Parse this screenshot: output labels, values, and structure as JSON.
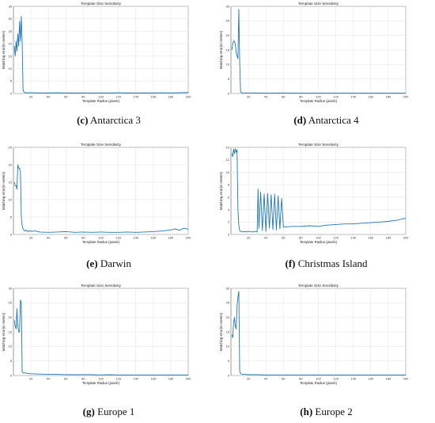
{
  "panels": [
    {
      "id": "c",
      "caption_letter": "(c)",
      "caption_text": "Antarctica 3",
      "chart_data": {
        "type": "line",
        "title": "Template Size Sensitivity",
        "xlabel": "Template Radius (pixels)",
        "ylabel": "Matching error(in meters)",
        "xlim": [
          0,
          200
        ],
        "ylim": [
          0,
          35
        ],
        "xticks": [
          20,
          40,
          60,
          80,
          100,
          120,
          140,
          160,
          180,
          200
        ],
        "yticks": [
          0,
          5,
          10,
          15,
          20,
          25,
          30,
          35
        ],
        "grid": true,
        "series": [
          {
            "color": "#1f77b4",
            "x": [
              1,
              2,
              3,
              4,
              5,
              6,
              7,
              8,
              9,
              10,
              11,
              12,
              13,
              14,
              15,
              20,
              30,
              40,
              50,
              60,
              70,
              80,
              90,
              100,
              110,
              120,
              130,
              140,
              150,
              160,
              170,
              180,
              190,
              200
            ],
            "y": [
              19,
              15,
              21,
              17,
              24,
              19,
              29,
              21,
              31,
              20,
              1.5,
              0.6,
              0.4,
              0.3,
              0.3,
              0.3,
              0.2,
              0.2,
              0.3,
              0.2,
              0.2,
              0.2,
              0.2,
              0.2,
              0.2,
              0.3,
              0.2,
              0.2,
              0.2,
              0.2,
              0.3,
              0.2,
              0.3,
              0.4
            ]
          }
        ]
      }
    },
    {
      "id": "d",
      "caption_letter": "(d)",
      "caption_text": "Antarctica 4",
      "chart_data": {
        "type": "line",
        "title": "Template Size Sensitivity",
        "xlabel": "Template Radius (pixels)",
        "ylabel": "Matching error(in meters)",
        "xlim": [
          0,
          200
        ],
        "ylim": [
          0,
          30
        ],
        "xticks": [
          20,
          40,
          60,
          80,
          100,
          120,
          140,
          160,
          180,
          200
        ],
        "yticks": [
          0,
          5,
          10,
          15,
          20,
          25,
          30
        ],
        "grid": true,
        "series": [
          {
            "color": "#1f77b4",
            "x": [
              1,
              2,
              3,
              4,
              5,
              6,
              7,
              8,
              9,
              10,
              11,
              12,
              14,
              20,
              30,
              40,
              50,
              60,
              70,
              80,
              90,
              100,
              110,
              120,
              130,
              140,
              150,
              160,
              170,
              180,
              190,
              200
            ],
            "y": [
              15,
              17,
              18,
              18,
              17,
              14,
              13,
              12,
              29,
              11,
              0.6,
              0.3,
              0.2,
              0.2,
              0.2,
              0.1,
              0.1,
              0.2,
              0.1,
              0.1,
              0.1,
              0.1,
              0.1,
              0.1,
              0.1,
              0.1,
              0.1,
              0.1,
              0.1,
              0.1,
              0.1,
              0.1
            ]
          }
        ]
      }
    },
    {
      "id": "e",
      "caption_letter": "(e)",
      "caption_text": "Darwin",
      "chart_data": {
        "type": "line",
        "title": "Template Size Sensitivity",
        "xlabel": "Template Radius (pixels)",
        "ylabel": "Matching error(in meters)",
        "xlim": [
          0,
          200
        ],
        "ylim": [
          0,
          25
        ],
        "xticks": [
          20,
          40,
          60,
          80,
          100,
          120,
          140,
          160,
          180,
          200
        ],
        "yticks": [
          0,
          5,
          10,
          15,
          20,
          25
        ],
        "grid": true,
        "series": [
          {
            "color": "#1f77b4",
            "x": [
              1,
              2,
              3,
              4,
              5,
              6,
              7,
              8,
              9,
              10,
              11,
              12,
              13,
              14,
              16,
              18,
              20,
              25,
              30,
              40,
              50,
              60,
              70,
              80,
              90,
              100,
              110,
              120,
              130,
              140,
              150,
              160,
              170,
              180,
              185,
              190,
              195,
              200
            ],
            "y": [
              15,
              14,
              14,
              13,
              20,
              19,
              19,
              18,
              5,
              2.5,
              1.6,
              1.2,
              1.0,
              1.3,
              0.8,
              1.1,
              0.9,
              1.0,
              0.7,
              0.6,
              0.7,
              0.8,
              0.6,
              0.7,
              0.6,
              0.7,
              0.6,
              0.6,
              0.7,
              0.6,
              0.7,
              0.8,
              1.0,
              1.3,
              1.6,
              1.2,
              1.8,
              1.5
            ]
          }
        ]
      }
    },
    {
      "id": "f",
      "caption_letter": "(f)",
      "caption_text": "Christmas Island",
      "chart_data": {
        "type": "line",
        "title": "Template Size Sensitivity",
        "xlabel": "Template Radius (pixels)",
        "ylabel": "Matching error(in meters)",
        "xlim": [
          0,
          200
        ],
        "ylim": [
          0,
          14
        ],
        "xticks": [
          20,
          40,
          60,
          80,
          100,
          120,
          140,
          160,
          180,
          200
        ],
        "yticks": [
          0,
          2,
          4,
          6,
          8,
          10,
          12,
          14
        ],
        "grid": true,
        "series": [
          {
            "color": "#1f77b4",
            "x": [
              1,
              2,
              3,
              4,
              5,
              6,
              7,
              8,
              9,
              10,
              11,
              12,
              14,
              16,
              18,
              20,
              25,
              28,
              30,
              31,
              32,
              34,
              36,
              38,
              40,
              42,
              44,
              46,
              48,
              50,
              52,
              54,
              56,
              58,
              60,
              62,
              70,
              80,
              90,
              100,
              110,
              120,
              130,
              140,
              150,
              160,
              170,
              180,
              190,
              200
            ],
            "y": [
              13,
              12.5,
              13.7,
              13,
              13.8,
              13.2,
              13.6,
              4,
              1.5,
              0.6,
              0.5,
              0.5,
              0.4,
              0.5,
              0.4,
              0.5,
              0.4,
              0.5,
              0.4,
              7.3,
              1,
              6.8,
              0.6,
              6.5,
              0.5,
              6.6,
              1,
              6.4,
              0.8,
              6.5,
              0.7,
              6.2,
              0.9,
              5.8,
              1.2,
              1.2,
              1.3,
              1.3,
              1.4,
              1.3,
              1.5,
              1.6,
              1.7,
              1.7,
              1.8,
              1.9,
              2.0,
              2.1,
              2.3,
              2.6
            ]
          }
        ]
      }
    },
    {
      "id": "g",
      "caption_letter": "(g)",
      "caption_text": "Europe 1",
      "chart_data": {
        "type": "line",
        "title": "Template Size Sensitivity",
        "xlabel": "Template Radius (pixels)",
        "ylabel": "Matching error(in meters)",
        "xlim": [
          0,
          200
        ],
        "ylim": [
          0,
          30
        ],
        "xticks": [
          20,
          40,
          60,
          80,
          100,
          120,
          140,
          160,
          180,
          200
        ],
        "yticks": [
          0,
          5,
          10,
          15,
          20,
          25,
          30
        ],
        "grid": true,
        "series": [
          {
            "color": "#1f77b4",
            "x": [
              1,
              2,
              3,
              4,
              5,
              6,
              7,
              8,
              9,
              10,
              11,
              12,
              14,
              16,
              20,
              30,
              40,
              50,
              60,
              70,
              80,
              90,
              100,
              110,
              120,
              130,
              140,
              150,
              160,
              170,
              180,
              190,
              200
            ],
            "y": [
              19,
              17,
              16,
              23,
              17,
              15,
              15,
              26,
              25,
              1.2,
              0.9,
              0.8,
              0.9,
              0.7,
              0.6,
              0.5,
              0.4,
              0.4,
              0.3,
              0.3,
              0.3,
              0.3,
              0.2,
              0.3,
              0.2,
              0.2,
              0.2,
              0.2,
              0.2,
              0.2,
              0.2,
              0.2,
              0.2
            ]
          }
        ]
      }
    },
    {
      "id": "h",
      "caption_letter": "(h)",
      "caption_text": "Europe 2",
      "chart_data": {
        "type": "line",
        "title": "Template Size Sensitivity",
        "xlabel": "Template Radius (pixels)",
        "ylabel": "Matching error(in meters)",
        "xlim": [
          0,
          200
        ],
        "ylim": [
          0,
          30
        ],
        "xticks": [
          20,
          40,
          60,
          80,
          100,
          120,
          140,
          160,
          180,
          200
        ],
        "yticks": [
          0,
          5,
          10,
          15,
          20,
          25,
          30
        ],
        "grid": true,
        "series": [
          {
            "color": "#1f77b4",
            "x": [
              1,
              2,
              3,
              4,
              5,
              6,
              7,
              8,
              9,
              10,
              11,
              12,
              14,
              16,
              20,
              30,
              40,
              50,
              60,
              70,
              80,
              90,
              100,
              110,
              120,
              130,
              140,
              150,
              160,
              170,
              180,
              190,
              200
            ],
            "y": [
              14,
              13,
              18,
              20,
              17,
              16,
              24,
              27,
              29,
              1.5,
              0.7,
              0.5,
              0.4,
              0.4,
              0.3,
              0.3,
              0.2,
              0.2,
              0.2,
              0.2,
              0.2,
              0.2,
              0.2,
              0.2,
              0.2,
              0.2,
              0.2,
              0.2,
              0.2,
              0.2,
              0.2,
              0.2,
              0.2
            ]
          }
        ]
      }
    }
  ]
}
